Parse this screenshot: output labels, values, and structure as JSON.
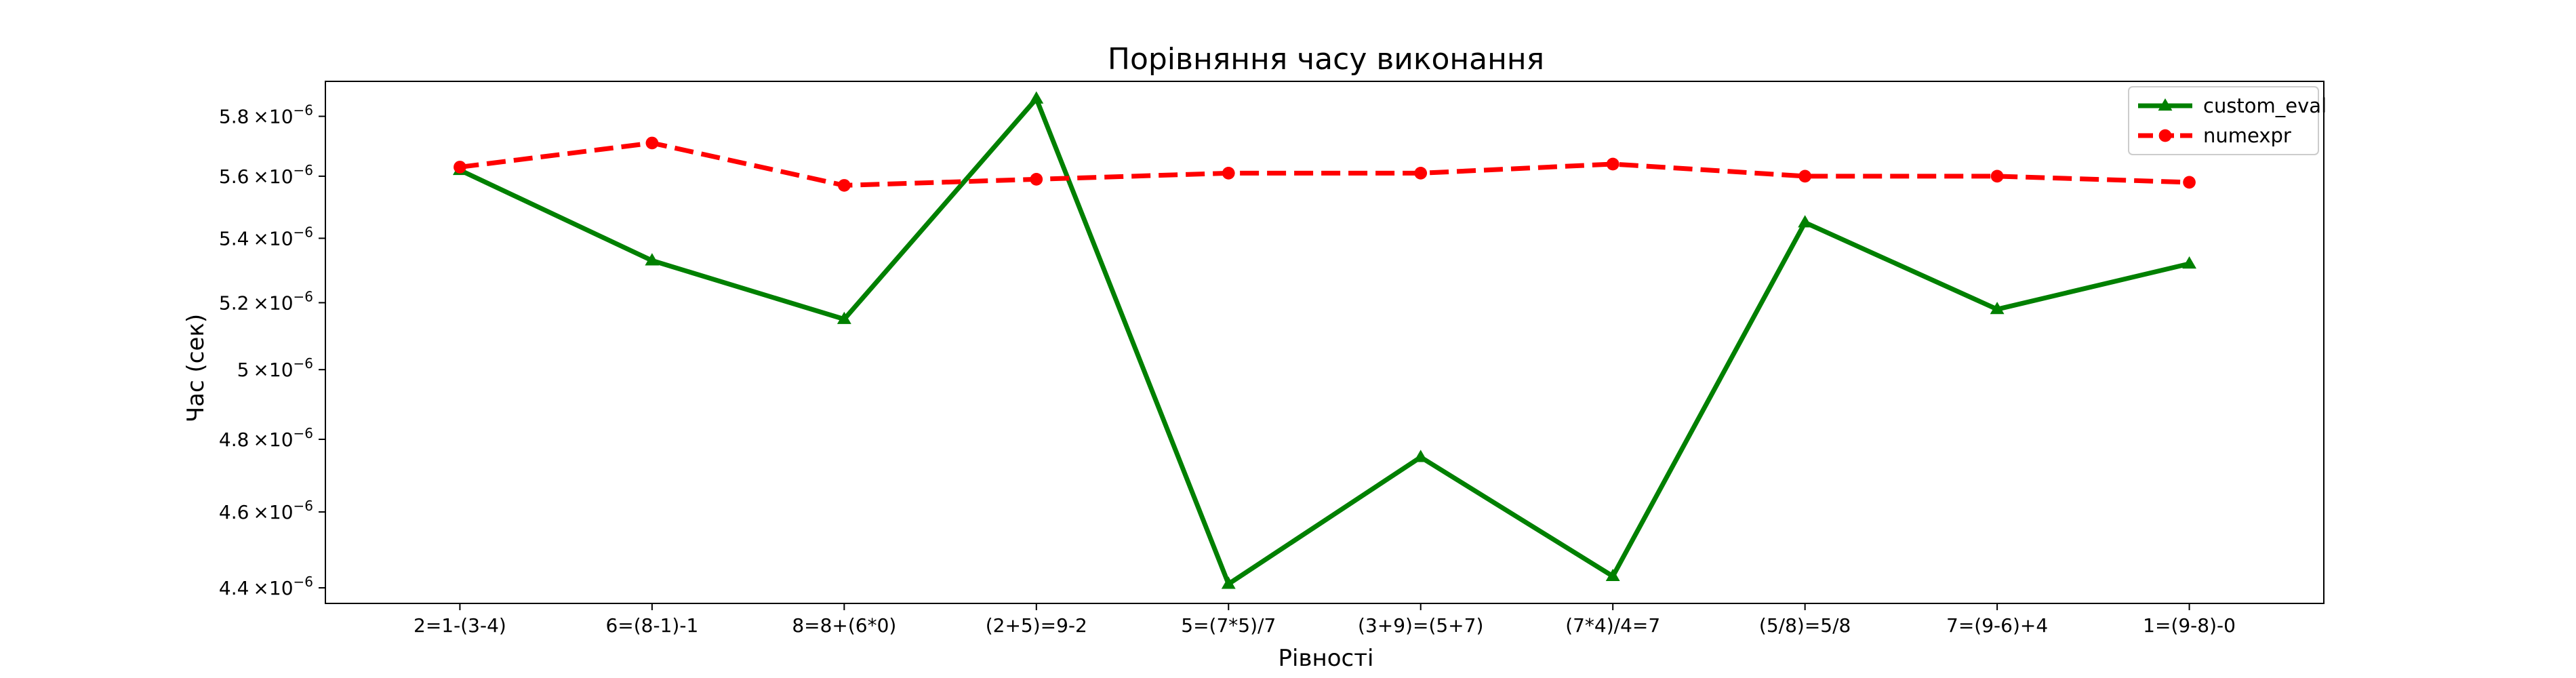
{
  "chart_data": {
    "type": "line",
    "title": "Порівняння часу виконання",
    "xlabel": "Рівності",
    "ylabel": "Час (сек)",
    "yscale": "log",
    "ylim": [
      4.36e-06,
      5.92e-06
    ],
    "yticks": [
      4.4e-06,
      4.6e-06,
      4.8e-06,
      5e-06,
      5.2e-06,
      5.4e-06,
      5.6e-06,
      5.8e-06
    ],
    "ytick_labels": [
      [
        "4.4",
        "×10",
        "−6"
      ],
      [
        "4.6",
        "×10",
        "−6"
      ],
      [
        "4.8",
        "×10",
        "−6"
      ],
      [
        "5",
        "×10",
        "−6"
      ],
      [
        "5.2",
        "×10",
        "−6"
      ],
      [
        "5.4",
        "×10",
        "−6"
      ],
      [
        "5.6",
        "×10",
        "−6"
      ],
      [
        "5.8",
        "×10",
        "−6"
      ]
    ],
    "categories": [
      "2=1-(3-4)",
      "6=(8-1)-1",
      "8=8+(6*0)",
      "(2+5)=9-2",
      "5=(7*5)/7",
      "(3+9)=(5+7)",
      "(7*4)/4=7",
      "(5/8)=5/8",
      "7=(9-6)+4",
      "1=(9-8)-0"
    ],
    "grid": false,
    "legend_position": "top-right",
    "series": [
      {
        "name": "custom_eval",
        "color": "#008000",
        "line_style": "solid",
        "marker": "triangle",
        "values": [
          5.62e-06,
          5.33e-06,
          5.15e-06,
          5.86e-06,
          4.41e-06,
          4.75e-06,
          4.43e-06,
          5.45e-06,
          5.18e-06,
          5.32e-06
        ]
      },
      {
        "name": "numexpr",
        "color": "#ff0000",
        "line_style": "dashed",
        "marker": "circle",
        "values": [
          5.63e-06,
          5.71e-06,
          5.57e-06,
          5.59e-06,
          5.61e-06,
          5.61e-06,
          5.64e-06,
          5.6e-06,
          5.6e-06,
          5.58e-06
        ]
      }
    ]
  }
}
